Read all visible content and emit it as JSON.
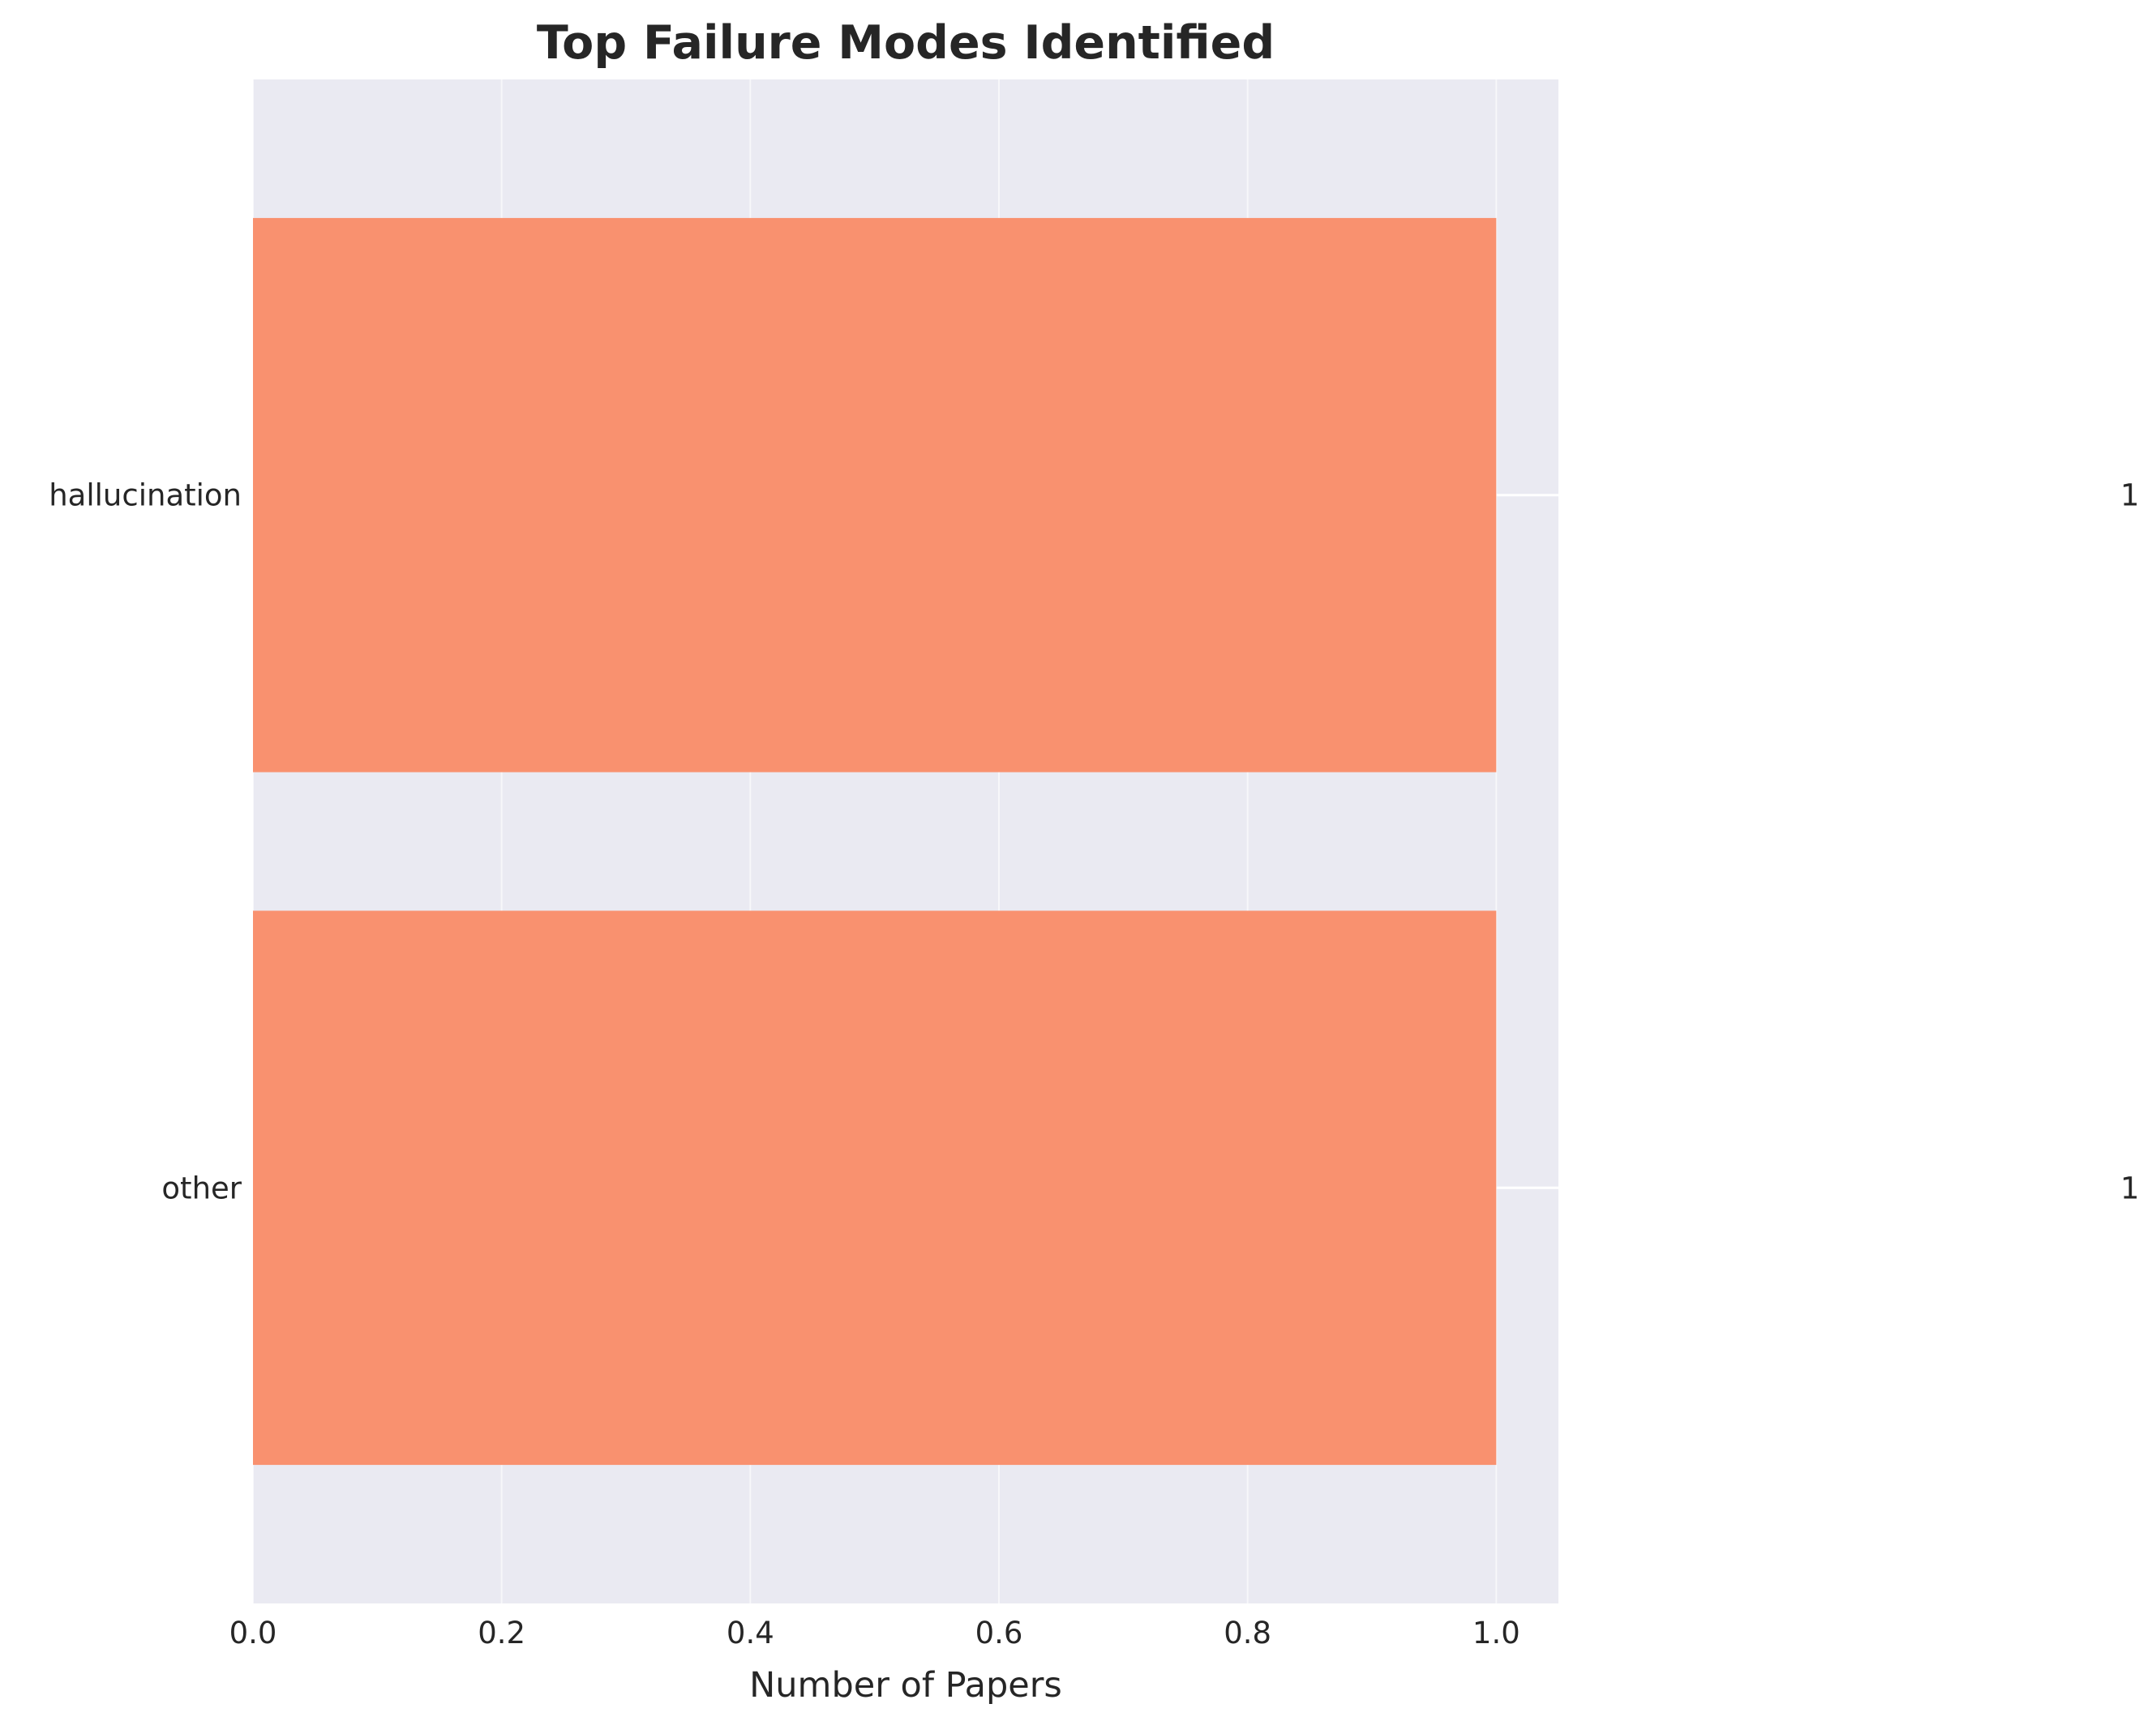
{
  "chart_data": {
    "type": "bar",
    "orientation": "horizontal",
    "title": "Top Failure Modes Identified",
    "xlabel": "Number of Papers",
    "ylabel": "",
    "categories": [
      "hallucination",
      "other"
    ],
    "values": [
      1,
      1
    ],
    "data_labels": [
      "1",
      "1"
    ],
    "xlim": [
      0,
      1.05
    ],
    "xticks": [
      "0.0",
      "0.2",
      "0.4",
      "0.6",
      "0.8",
      "1.0"
    ],
    "grid": true,
    "legend": "none"
  },
  "colors": {
    "bar": "#f9916f",
    "plot_background": "#eaeaf2",
    "grid": "#ffffff",
    "text": "#262626"
  }
}
